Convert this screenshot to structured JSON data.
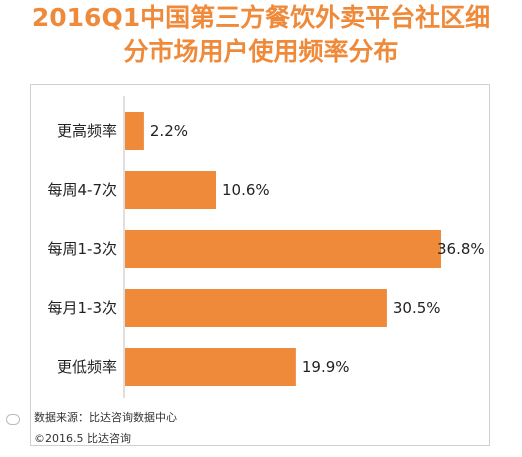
{
  "chart_data": {
    "type": "bar",
    "orientation": "horizontal",
    "title_line1": "2016Q1中国第三方餐饮外卖平台社区细",
    "title_line2": "分市场用户使用频率分布",
    "categories": [
      "更高频率",
      "每周4-7次",
      "每周1-3次",
      "每月1-3次",
      "更低频率"
    ],
    "values": [
      2.2,
      10.6,
      36.8,
      30.5,
      19.9
    ],
    "value_labels": [
      "2.2%",
      "10.6%",
      "36.8%",
      "30.5%",
      "19.9%"
    ],
    "xlim": [
      0,
      36.8
    ],
    "grid": false,
    "legend": "none",
    "colors": {
      "bar": "#ef8a3a",
      "title": "#ef8a3a"
    }
  },
  "footer": {
    "source": "数据来源：比达咨询数据中心",
    "copyright": "©2016.5 比达咨询"
  }
}
